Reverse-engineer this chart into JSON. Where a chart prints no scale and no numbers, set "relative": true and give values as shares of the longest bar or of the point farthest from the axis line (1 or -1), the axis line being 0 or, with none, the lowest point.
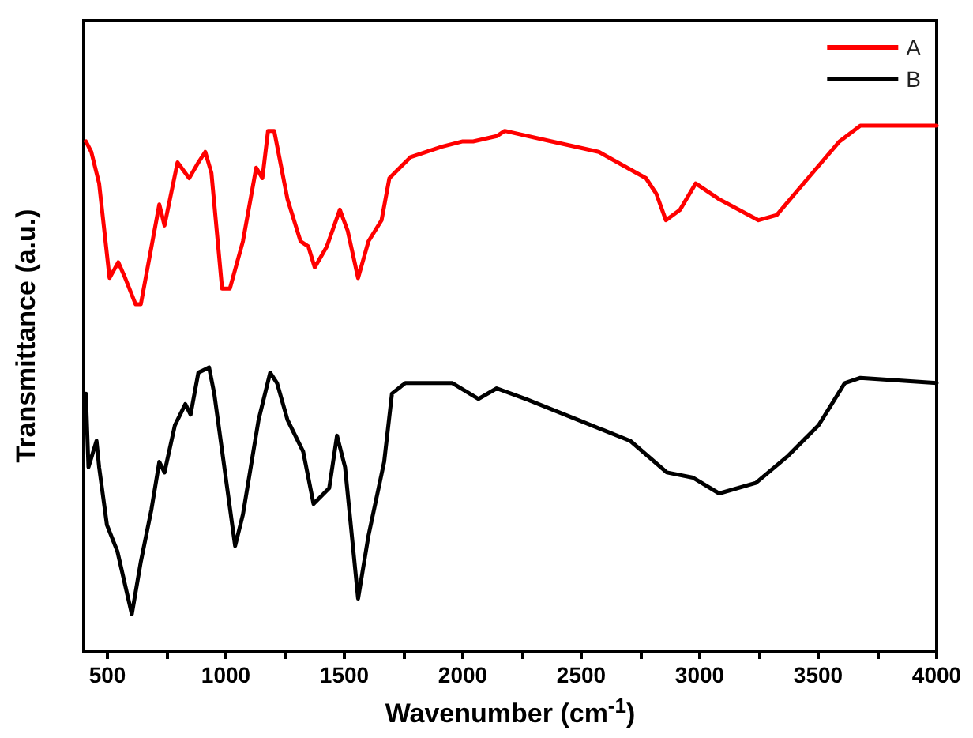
{
  "chart_data": {
    "type": "line",
    "relative": true,
    "xlabel": "Wavenumber (cm$^{-1}$)",
    "ylabel": "Transmittance (a.u.)",
    "xlim": [
      400,
      4000
    ],
    "xticks": [
      500,
      {
        "value": 750,
        "label": null
      },
      1000,
      {
        "value": 1250,
        "label": null
      },
      1500,
      {
        "value": 1750,
        "label": null
      },
      2000,
      {
        "value": 2250,
        "label": null
      },
      2500,
      {
        "value": 2750,
        "label": null
      },
      3000,
      {
        "value": 3250,
        "label": null
      },
      3500,
      {
        "value": 3750,
        "label": null
      },
      4000
    ],
    "grid": false,
    "legend": "top right",
    "marker": "none",
    "line_style": "solid",
    "series": [
      {
        "name": "A",
        "color": "#ff0000",
        "x": [
          409,
          432,
          465,
          509,
          546,
          575,
          619,
          641,
          719,
          741,
          796,
          845,
          884,
          913,
          939,
          984,
          1017,
          1072,
          1128,
          1154,
          1178,
          1204,
          1260,
          1315,
          1348,
          1375,
          1426,
          1481,
          1514,
          1558,
          1602,
          1657,
          1690,
          1779,
          1912,
          2000,
          2044,
          2143,
          2177,
          2375,
          2574,
          2773,
          2817,
          2857,
          2917,
          2983,
          3082,
          3248,
          3325,
          3457,
          3590,
          3678,
          4000
        ],
        "values": [
          0.97,
          0.95,
          0.89,
          0.71,
          0.74,
          0.71,
          0.66,
          0.66,
          0.85,
          0.81,
          0.93,
          0.9,
          0.93,
          0.95,
          0.91,
          0.69,
          0.69,
          0.78,
          0.92,
          0.9,
          0.99,
          0.99,
          0.86,
          0.78,
          0.77,
          0.73,
          0.77,
          0.84,
          0.8,
          0.71,
          0.78,
          0.82,
          0.9,
          0.94,
          0.96,
          0.97,
          0.97,
          0.98,
          0.99,
          0.97,
          0.95,
          0.9,
          0.87,
          0.82,
          0.84,
          0.89,
          0.86,
          0.82,
          0.83,
          0.9,
          0.97,
          1.0,
          1.0
        ]
      },
      {
        "name": "B",
        "color": "#000000",
        "x": [
          409,
          420,
          454,
          465,
          498,
          542,
          603,
          641,
          686,
          719,
          741,
          785,
          829,
          851,
          884,
          929,
          951,
          1039,
          1072,
          1138,
          1187,
          1216,
          1260,
          1326,
          1370,
          1436,
          1469,
          1503,
          1558,
          1602,
          1668,
          1701,
          1757,
          1956,
          2066,
          2143,
          2265,
          2486,
          2707,
          2861,
          2972,
          3082,
          3237,
          3369,
          3502,
          3612,
          3678,
          4000
        ],
        "values": [
          0.49,
          0.35,
          0.4,
          0.35,
          0.24,
          0.19,
          0.07,
          0.17,
          0.27,
          0.36,
          0.34,
          0.43,
          0.47,
          0.45,
          0.53,
          0.54,
          0.49,
          0.2,
          0.26,
          0.44,
          0.53,
          0.51,
          0.44,
          0.38,
          0.28,
          0.31,
          0.41,
          0.35,
          0.1,
          0.22,
          0.36,
          0.49,
          0.51,
          0.51,
          0.48,
          0.5,
          0.48,
          0.44,
          0.4,
          0.34,
          0.33,
          0.3,
          0.32,
          0.37,
          0.43,
          0.51,
          0.52,
          0.51
        ]
      }
    ]
  }
}
